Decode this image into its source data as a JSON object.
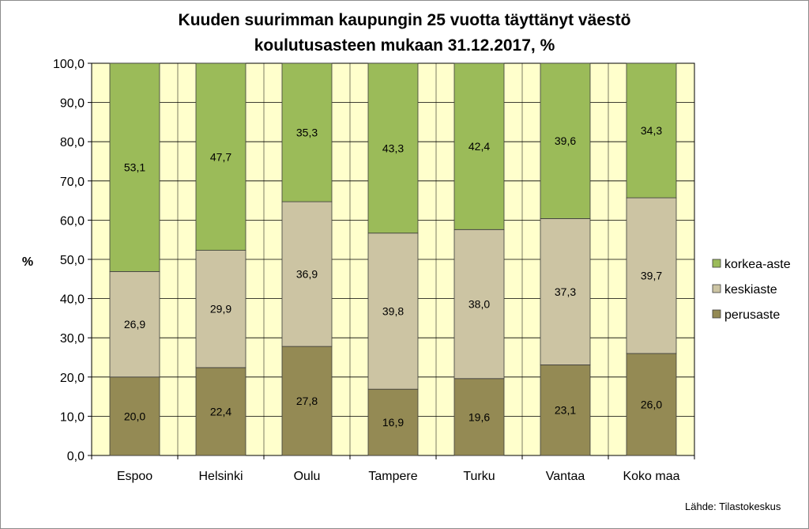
{
  "chart_data": {
    "type": "bar",
    "stacked": true,
    "title_line1": "Kuuden suurimman kaupungin 25 vuotta täyttänyt väestö",
    "title_line2": "koulutusasteen mukaan  31.12.2017, %",
    "ylabel": "%",
    "xlabel": "",
    "ylim": [
      0,
      100
    ],
    "yticks": [
      "0,0",
      "10,0",
      "20,0",
      "30,0",
      "40,0",
      "50,0",
      "60,0",
      "70,0",
      "80,0",
      "90,0",
      "100,0"
    ],
    "grid": true,
    "legend_position": "right",
    "categories": [
      "Espoo",
      "Helsinki",
      "Oulu",
      "Tampere",
      "Turku",
      "Vantaa",
      "Koko maa"
    ],
    "series": [
      {
        "name": "perusaste",
        "color": "#948a54",
        "values": [
          20.0,
          22.4,
          27.8,
          16.9,
          19.6,
          23.1,
          26.0
        ],
        "labels": [
          "20,0",
          "22,4",
          "27,8",
          "16,9",
          "19,6",
          "23,1",
          "26,0"
        ]
      },
      {
        "name": "keskiaste",
        "color": "#ccc4a3",
        "values": [
          26.9,
          29.9,
          36.9,
          39.8,
          38.0,
          37.3,
          39.7
        ],
        "labels": [
          "26,9",
          "29,9",
          "36,9",
          "39,8",
          "38,0",
          "37,3",
          "39,7"
        ]
      },
      {
        "name": "korkea-aste",
        "color": "#9bbb59",
        "values": [
          53.1,
          47.7,
          35.3,
          43.3,
          42.4,
          39.6,
          34.3
        ],
        "labels": [
          "53,1",
          "47,7",
          "35,3",
          "43,3",
          "42,4",
          "39,6",
          "34,3"
        ]
      }
    ],
    "legend_order": [
      "korkea-aste",
      "keskiaste",
      "perusaste"
    ],
    "plot_background": "#ffffcc",
    "source": "Lähde: Tilastokeskus"
  }
}
